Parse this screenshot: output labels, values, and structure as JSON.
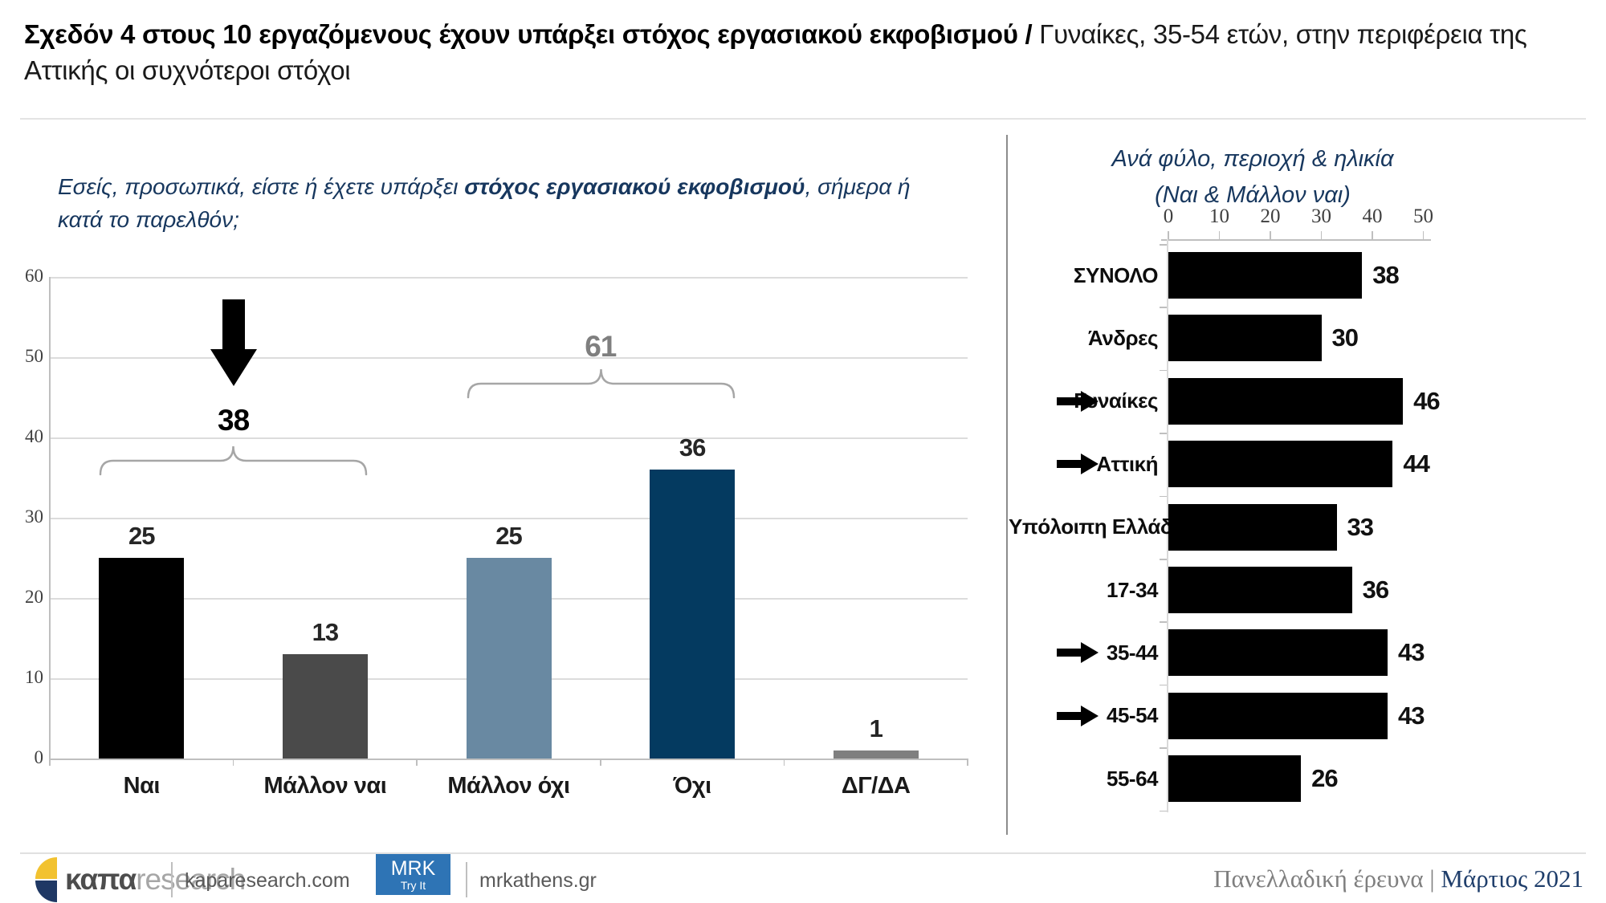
{
  "title": {
    "bold": "Σχεδόν 4 στους 10 εργαζόμενους έχουν υπάρξει στόχος εργασιακού εκφοβισμού /",
    "regular": " Γυναίκες, 35-54 ετών, στην περιφέρεια της Αττικής οι συχνότεροι στόχοι"
  },
  "question": {
    "pre": "Εσείς, προσωπικά, είστε ή έχετε υπάρξει ",
    "bold": "στόχος εργασιακού εκφοβισμού",
    "post": ", σήμερα ή κατά το παρελθόν;"
  },
  "chart_data": [
    {
      "type": "bar",
      "categories": [
        "Ναι",
        "Μάλλον ναι",
        "Μάλλον όχι",
        "Όχι",
        "ΔΓ/ΔΑ"
      ],
      "values": [
        25,
        13,
        25,
        36,
        1
      ],
      "bar_colors": [
        "#000000",
        "#4A4A4A",
        "#6989A2",
        "#043A60",
        "#7F7F7F"
      ],
      "ylim": [
        0,
        60
      ],
      "yticks": [
        0,
        10,
        20,
        30,
        40,
        50,
        60
      ],
      "grid": "horizontal",
      "annotations": [
        {
          "label": "38",
          "from": 0,
          "to": 1,
          "arrow": true,
          "color": "#000000"
        },
        {
          "label": "61",
          "from": 2,
          "to": 3,
          "arrow": false,
          "color": "#7F7F7F"
        }
      ]
    },
    {
      "type": "horizontal-bar",
      "title": "Ανά φύλο, περιοχή & ηλικία",
      "subtitle": "(Ναι & Μάλλον ναι)",
      "categories": [
        "ΣΥΝΟΛΟ",
        "Άνδρες",
        "Γυναίκες",
        "Αττική",
        "Υπόλοιπη Ελλάδα",
        "17-34",
        "35-44",
        "45-54",
        "55-64"
      ],
      "values": [
        38,
        30,
        46,
        44,
        33,
        36,
        43,
        43,
        26
      ],
      "highlight_arrows": [
        "Γυναίκες",
        "Αττική",
        "35-44",
        "45-54"
      ],
      "xlim": [
        0,
        50
      ],
      "xticks": [
        0,
        10,
        20,
        30,
        40,
        50
      ],
      "bar_color": "#000000",
      "legend": "none"
    }
  ],
  "footer": {
    "logo_bold": "καπα",
    "logo_light": "research",
    "link1": "kaparesearch.com",
    "badge_line1": "MRK",
    "badge_line2": "Try It",
    "link2": "mrkathens.gr",
    "source_gray": "Πανελλαδική έρευνα",
    "source_sep": "|",
    "source_accent": "Μάρτιος 2021"
  },
  "colors": {
    "accent_navy": "#17375E",
    "grid": "#DCDCDC",
    "axis": "#BFBFBF",
    "brace": "#A6A6A6",
    "badge_blue": "#2E74B5",
    "logo_yellow": "#F2C230",
    "logo_navy": "#1F3864"
  }
}
